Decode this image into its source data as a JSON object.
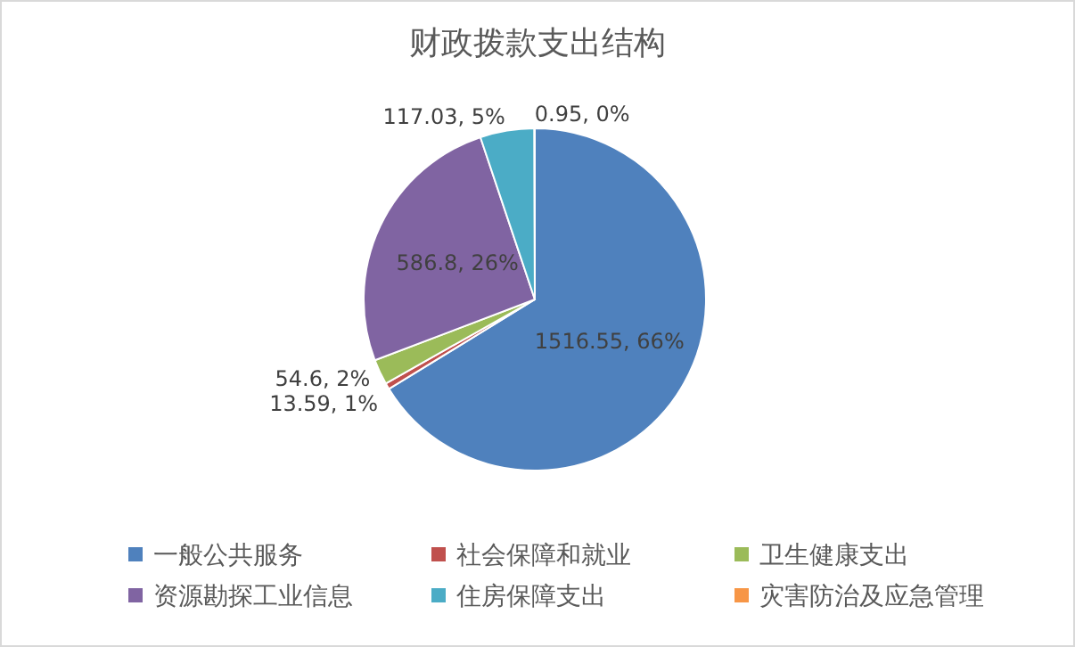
{
  "chart_data": {
    "type": "pie",
    "title": "财政拨款支出结构",
    "categories": [
      "一般公共服务",
      "社会保障和就业",
      "卫生健康支出",
      "资源勘探工业信息",
      "住房保障支出",
      "灾害防治及应急管理"
    ],
    "values": [
      1516.55,
      13.59,
      54.6,
      586.8,
      117.03,
      0.95
    ],
    "colors": [
      "#4f81bd",
      "#c0504d",
      "#9bbb59",
      "#8064a2",
      "#4bacc6",
      "#f79646"
    ],
    "value_labels": [
      "1516.55, 66%",
      "13.59, 1%",
      "54.6, 2%",
      "586.8, 26%",
      "117.03, 5%",
      "0.95, 0%"
    ],
    "legend": "bottom"
  }
}
